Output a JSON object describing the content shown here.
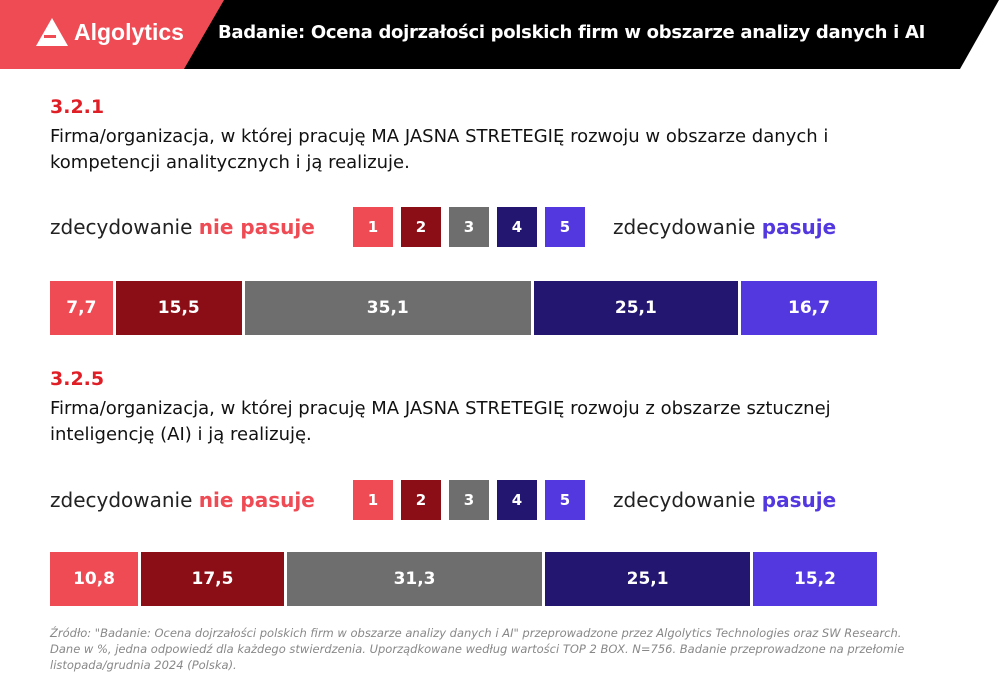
{
  "header": {
    "brand": "Algolytics",
    "title": "Badanie: Ocena dojrzałości polskich firm w obszarze analizy danych i AI",
    "colors": {
      "brand": "#ef4b55",
      "dark": "#000000"
    }
  },
  "legend": {
    "left_prefix": "zdecydowanie ",
    "left_emph": "nie pasuje",
    "right_prefix": "zdecydowanie ",
    "right_emph": "pasuje",
    "levels": [
      "1",
      "2",
      "3",
      "4",
      "5"
    ],
    "colors": [
      "#ef4b55",
      "#8b0d15",
      "#6e6e6e",
      "#231670",
      "#5338e0"
    ]
  },
  "chart_data": [
    {
      "type": "bar",
      "stacked": "horizontal-100%",
      "id": "3.2.1",
      "title": "Firma/organizacja, w której pracuję MA JASNA STRETEGIĘ rozwoju w obszarze danych i kompetencji analitycznych i ją realizuje.",
      "categories": [
        "1",
        "2",
        "3",
        "4",
        "5"
      ],
      "values": [
        7.7,
        15.5,
        35.1,
        25.1,
        16.7
      ],
      "labels": [
        "7,7",
        "15,5",
        "35,1",
        "25,1",
        "16,7"
      ]
    },
    {
      "type": "bar",
      "stacked": "horizontal-100%",
      "id": "3.2.5",
      "title": "Firma/organizacja, w której pracuję MA JASNA STRETEGIĘ rozwoju z obszarze sztucznej inteligencję (AI) i ją realizuję.",
      "categories": [
        "1",
        "2",
        "3",
        "4",
        "5"
      ],
      "values": [
        10.8,
        17.5,
        31.3,
        25.1,
        15.2
      ],
      "labels": [
        "10,8",
        "17,5",
        "31,3",
        "25,1",
        "15,2"
      ]
    }
  ],
  "source": "Źródło: \"Badanie: Ocena dojrzałości polskich firm w obszarze analizy danych i AI\" przeprowadzone przez Algolytics Technologies oraz SW Research. Dane w %, jedna odpowiedź dla każdego stwierdzenia. Uporządkowane według wartości TOP 2 BOX. N=756. Badanie przeprowadzone na przełomie listopada/grudnia 2024 (Polska)."
}
